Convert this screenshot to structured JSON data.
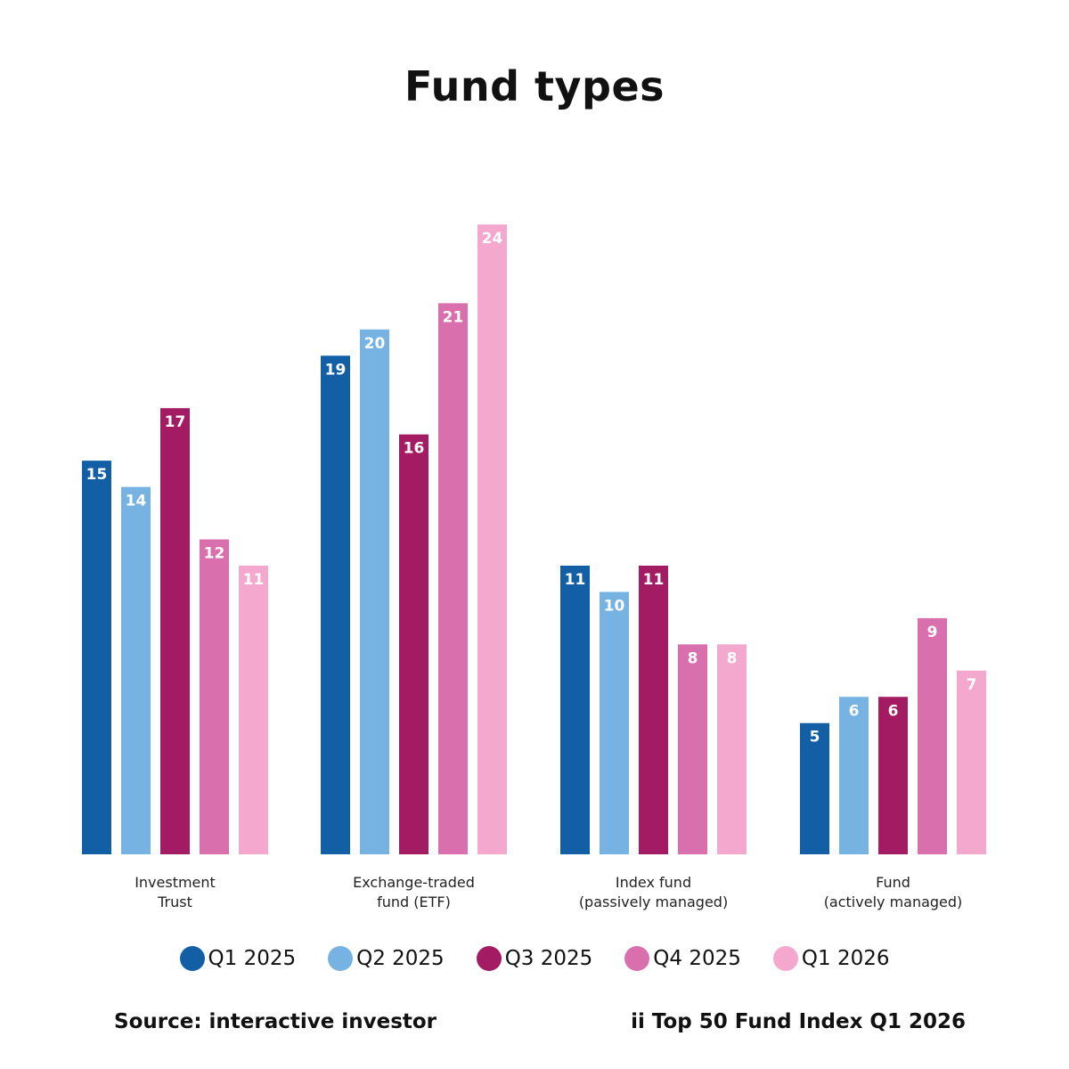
{
  "chart_data": {
    "type": "bar",
    "title": "Fund types",
    "categories": [
      [
        "Investment",
        "Trust"
      ],
      [
        "Exchange-traded",
        "fund (ETF)"
      ],
      [
        "Index fund",
        "(passively managed)"
      ],
      [
        "Fund",
        "(actively managed)"
      ]
    ],
    "series": [
      {
        "name": "Q1 2025",
        "color": "#135fa6",
        "values": [
          15,
          19,
          11,
          5
        ]
      },
      {
        "name": "Q2 2025",
        "color": "#76b2e2",
        "values": [
          14,
          20,
          10,
          6
        ]
      },
      {
        "name": "Q3 2025",
        "color": "#a31c63",
        "values": [
          17,
          16,
          11,
          6
        ]
      },
      {
        "name": "Q4 2025",
        "color": "#da6fae",
        "values": [
          12,
          21,
          8,
          9
        ]
      },
      {
        "name": "Q1 2026",
        "color": "#f4a8cd",
        "values": [
          11,
          24,
          8,
          7
        ]
      }
    ],
    "ylim": [
      0,
      24
    ],
    "grid": false,
    "legend": "bottom",
    "data_labels": true
  },
  "footer": {
    "source": "Source: interactive investor",
    "index_note": "ii Top 50 Fund Index Q1 2026"
  }
}
